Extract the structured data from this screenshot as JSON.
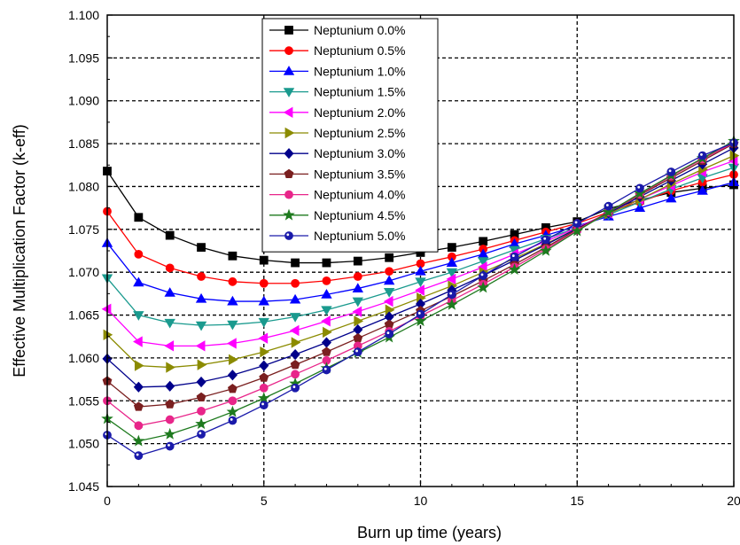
{
  "chart_data": {
    "type": "line",
    "title": "",
    "xlabel": "Burn up time (years)",
    "ylabel": "Effective Multiplication Factor (k-eff)",
    "xlim": [
      0,
      20
    ],
    "ylim": [
      1.045,
      1.1
    ],
    "x_ticks": [
      "0",
      "5",
      "10",
      "15",
      "20"
    ],
    "y_ticks": [
      "1.045",
      "1.050",
      "1.055",
      "1.060",
      "1.065",
      "1.070",
      "1.075",
      "1.080",
      "1.085",
      "1.090",
      "1.095",
      "1.100"
    ],
    "grid": true,
    "legend_position": "top-center",
    "x": [
      0,
      1,
      2,
      3,
      4,
      5,
      6,
      7,
      8,
      9,
      10,
      11,
      12,
      13,
      14,
      15,
      16,
      17,
      18,
      19,
      20
    ],
    "series": [
      {
        "name": "Neptunium 0.0%",
        "color": "#000000",
        "marker": "square",
        "values": [
          1.0818,
          1.0764,
          1.0743,
          1.0729,
          1.0719,
          1.0714,
          1.0711,
          1.0711,
          1.0713,
          1.0717,
          1.0723,
          1.0729,
          1.0736,
          1.0744,
          1.0752,
          1.0759,
          1.0774,
          1.0784,
          1.0793,
          1.0798,
          1.0802
        ]
      },
      {
        "name": "Neptunium 0.5%",
        "color": "#ff0000",
        "marker": "circle",
        "values": [
          1.0771,
          1.0721,
          1.0705,
          1.0695,
          1.0689,
          1.0687,
          1.0687,
          1.069,
          1.0695,
          1.0701,
          1.071,
          1.0718,
          1.0727,
          1.0737,
          1.0747,
          1.0757,
          1.077,
          1.0782,
          1.0795,
          1.0805,
          1.0814
        ]
      },
      {
        "name": "Neptunium 1.0%",
        "color": "#0000ff",
        "marker": "triangle-up",
        "values": [
          1.0734,
          1.0688,
          1.0676,
          1.0669,
          1.0666,
          1.0666,
          1.0668,
          1.0674,
          1.0681,
          1.069,
          1.0701,
          1.0711,
          1.0721,
          1.0733,
          1.0743,
          1.0754,
          1.0765,
          1.0775,
          1.0786,
          1.0795,
          1.0805
        ]
      },
      {
        "name": "Neptunium 1.5%",
        "color": "#1a9a8e",
        "marker": "triangle-down",
        "values": [
          1.0693,
          1.065,
          1.0641,
          1.0638,
          1.0639,
          1.0642,
          1.0648,
          1.0656,
          1.0666,
          1.0677,
          1.0689,
          1.07,
          1.0713,
          1.0726,
          1.0739,
          1.0752,
          1.0767,
          1.0782,
          1.0797,
          1.081,
          1.0822
        ]
      },
      {
        "name": "Neptunium 2.0%",
        "color": "#ff00ff",
        "marker": "triangle-left",
        "values": [
          1.0657,
          1.0619,
          1.0614,
          1.0614,
          1.0617,
          1.0623,
          1.0632,
          1.0643,
          1.0654,
          1.0666,
          1.0679,
          1.0692,
          1.0706,
          1.0721,
          1.0736,
          1.0752,
          1.0769,
          1.0785,
          1.0801,
          1.0817,
          1.083
        ]
      },
      {
        "name": "Neptunium 2.5%",
        "color": "#8b8b00",
        "marker": "triangle-right",
        "values": [
          1.0627,
          1.0591,
          1.0589,
          1.0592,
          1.0598,
          1.0607,
          1.0618,
          1.063,
          1.0643,
          1.0656,
          1.067,
          1.0684,
          1.07,
          1.0716,
          1.0733,
          1.0751,
          1.0768,
          1.0785,
          1.0803,
          1.082,
          1.0836
        ]
      },
      {
        "name": "Neptunium 3.0%",
        "color": "#00008b",
        "marker": "diamond",
        "values": [
          1.0599,
          1.0566,
          1.0567,
          1.0572,
          1.058,
          1.0591,
          1.0604,
          1.0618,
          1.0633,
          1.0648,
          1.0663,
          1.0679,
          1.0696,
          1.0714,
          1.0732,
          1.0751,
          1.0769,
          1.0788,
          1.0807,
          1.0826,
          1.0845
        ]
      },
      {
        "name": "Neptunium 3.5%",
        "color": "#7a1f1f",
        "marker": "pentagon",
        "values": [
          1.0573,
          1.0543,
          1.0546,
          1.0554,
          1.0564,
          1.0577,
          1.0592,
          1.0607,
          1.0623,
          1.0639,
          1.0655,
          1.0672,
          1.069,
          1.0709,
          1.0729,
          1.075,
          1.077,
          1.079,
          1.081,
          1.083,
          1.085
        ]
      },
      {
        "name": "Neptunium 4.0%",
        "color": "#e8268a",
        "marker": "circle",
        "values": [
          1.055,
          1.0521,
          1.0528,
          1.0538,
          1.055,
          1.0565,
          1.0581,
          1.0597,
          1.0614,
          1.0631,
          1.0649,
          1.0667,
          1.0686,
          1.0706,
          1.0727,
          1.0749,
          1.077,
          1.0791,
          1.0812,
          1.0832,
          1.0851
        ]
      },
      {
        "name": "Neptunium 4.5%",
        "color": "#1e7a1e",
        "marker": "star",
        "values": [
          1.0529,
          1.0503,
          1.0511,
          1.0523,
          1.0537,
          1.0553,
          1.057,
          1.0588,
          1.0606,
          1.0624,
          1.0643,
          1.0662,
          1.0682,
          1.0703,
          1.0725,
          1.0748,
          1.077,
          1.0792,
          1.0813,
          1.0833,
          1.0853
        ]
      },
      {
        "name": "Neptunium 5.0%",
        "color": "#1a1aaa",
        "marker": "circle-dot",
        "values": [
          1.051,
          1.0486,
          1.0497,
          1.0511,
          1.0527,
          1.0545,
          1.0565,
          1.0586,
          1.0607,
          1.0628,
          1.0651,
          1.0674,
          1.0696,
          1.0718,
          1.0738,
          1.0757,
          1.0777,
          1.0798,
          1.0817,
          1.0836,
          1.0851
        ]
      }
    ]
  }
}
